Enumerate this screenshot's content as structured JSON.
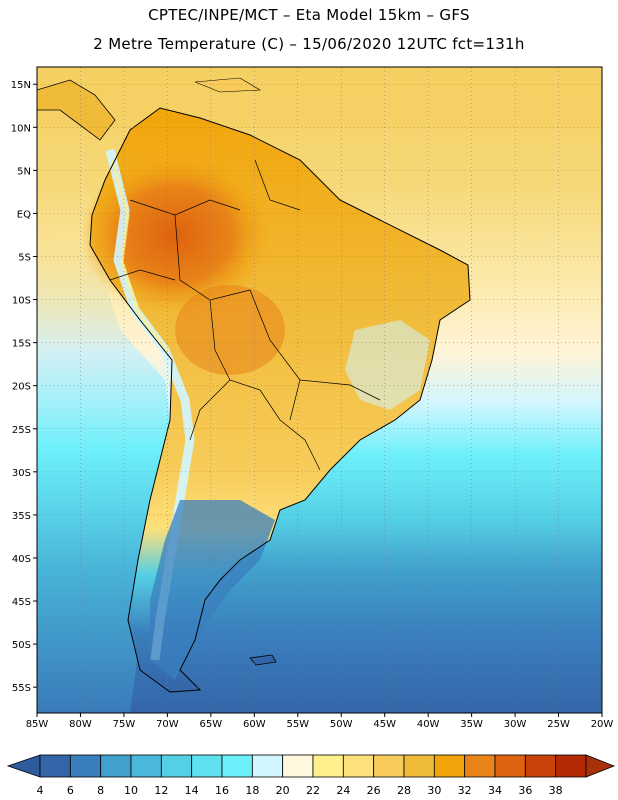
{
  "header": {
    "line1": "CPTEC/INPE/MCT –  Eta Model 15km – GFS",
    "line2": "2 Metre Temperature (C) – 15/06/2020 12UTC fct=131h"
  },
  "map": {
    "lat_labels": [
      "15N",
      "10N",
      "5N",
      "EQ",
      "5S",
      "10S",
      "15S",
      "20S",
      "25S",
      "30S",
      "35S",
      "40S",
      "45S",
      "50S",
      "55S"
    ],
    "lat_values": [
      15,
      10,
      5,
      0,
      -5,
      -10,
      -15,
      -20,
      -25,
      -30,
      -35,
      -40,
      -45,
      -50,
      -55
    ],
    "lon_labels": [
      "85W",
      "80W",
      "75W",
      "70W",
      "65W",
      "60W",
      "55W",
      "50W",
      "45W",
      "40W",
      "35W",
      "30W",
      "25W",
      "20W"
    ],
    "lon_values": [
      -85,
      -80,
      -75,
      -70,
      -65,
      -60,
      -55,
      -50,
      -45,
      -40,
      -35,
      -30,
      -25,
      -20
    ],
    "lon_range": [
      -85,
      -20
    ],
    "lat_range": [
      -58,
      17
    ],
    "grid": true
  },
  "colorbar": {
    "labels": [
      "4",
      "6",
      "8",
      "10",
      "12",
      "14",
      "16",
      "18",
      "20",
      "22",
      "24",
      "26",
      "28",
      "30",
      "32",
      "34",
      "36",
      "38"
    ],
    "colors": [
      "#3465a8",
      "#3a7fbd",
      "#41a0cc",
      "#4ab8da",
      "#55cfe4",
      "#5fe0ee",
      "#6ef0fa",
      "#d2f6ff",
      "#fff8dc",
      "#fff08c",
      "#fde07a",
      "#f7cc5a",
      "#f1bb3a",
      "#f1a50b",
      "#e88418",
      "#de6210",
      "#c8420a",
      "#b42a05"
    ],
    "underflow_color": "#2f5a9c",
    "overflow_color": "#a8300a"
  }
}
